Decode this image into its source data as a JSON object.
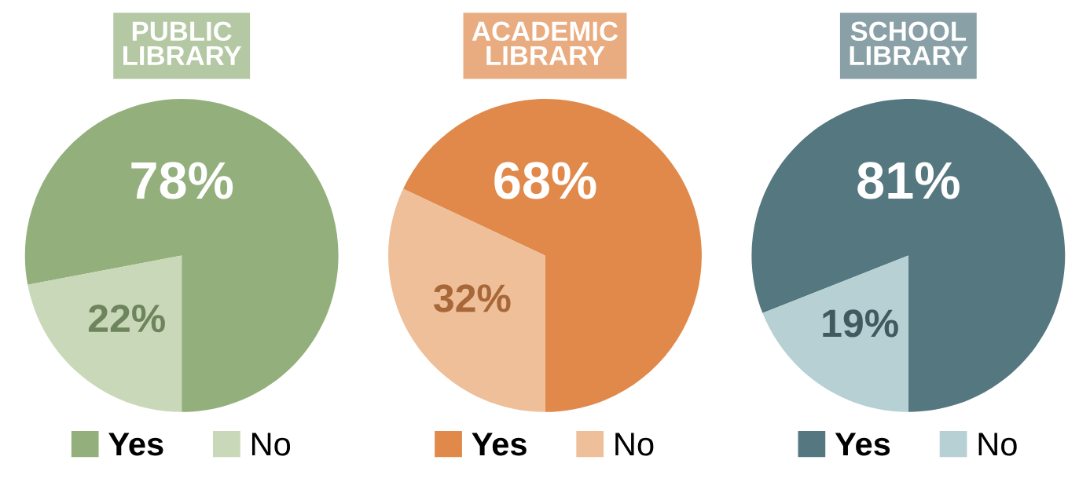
{
  "chart_data": [
    {
      "type": "pie",
      "title": "PUBLIC\nLIBRARY",
      "categories": [
        "Yes",
        "No"
      ],
      "values": [
        78,
        22
      ],
      "value_labels": [
        "78%",
        "22%"
      ],
      "colors": [
        "#93b07c",
        "#c8d8b8"
      ],
      "legend": "bottom"
    },
    {
      "type": "pie",
      "title": "ACADEMIC\nLIBRARY",
      "categories": [
        "Yes",
        "No"
      ],
      "values": [
        68,
        32
      ],
      "value_labels": [
        "68%",
        "32%"
      ],
      "colors": [
        "#e0894a",
        "#eebf98"
      ],
      "legend": "bottom"
    },
    {
      "type": "pie",
      "title": "SCHOOL\nLIBRARY",
      "categories": [
        "Yes",
        "No"
      ],
      "values": [
        81,
        19
      ],
      "value_labels": [
        "81%",
        "19%"
      ],
      "colors": [
        "#557880",
        "#b7d0d4"
      ],
      "legend": "bottom"
    }
  ]
}
